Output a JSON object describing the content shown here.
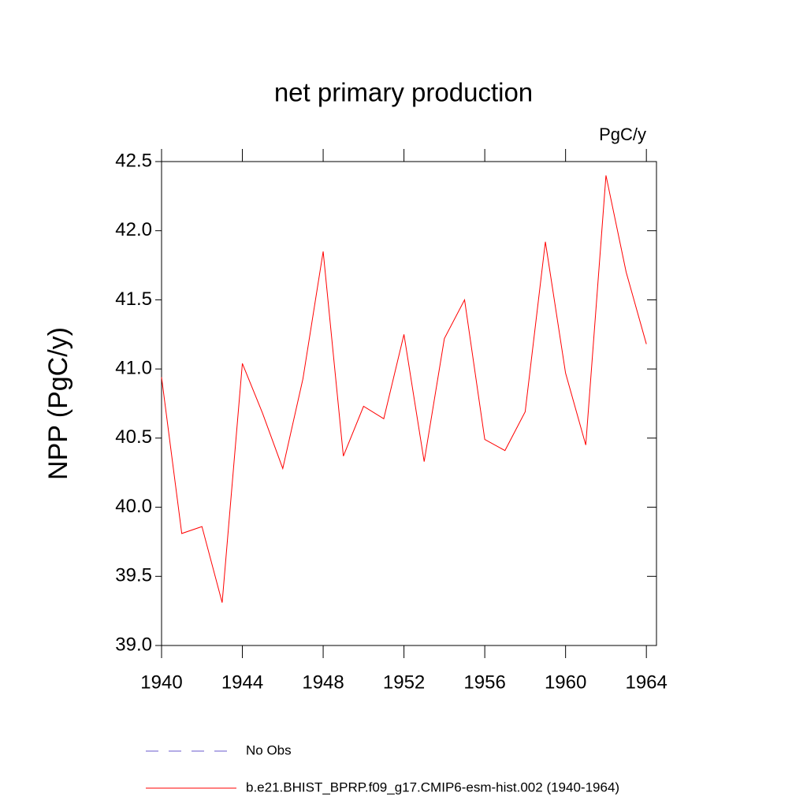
{
  "chart_data": {
    "type": "line",
    "title": "net primary production",
    "subtitle": "PgC/y",
    "y_label": "NPP  (PgC/y)",
    "x": [
      1940,
      1941,
      1942,
      1943,
      1944,
      1945,
      1946,
      1947,
      1948,
      1949,
      1950,
      1951,
      1952,
      1953,
      1954,
      1955,
      1956,
      1957,
      1958,
      1959,
      1960,
      1961,
      1962,
      1963,
      1964
    ],
    "series": [
      {
        "name": "No Obs",
        "color": "#6a5acd",
        "dash": "dashed",
        "values": [
          null,
          null,
          null,
          null,
          null,
          null,
          null,
          null,
          null,
          null,
          null,
          null,
          null,
          null,
          null,
          null,
          null,
          null,
          null,
          null,
          null,
          null,
          null,
          null,
          null
        ]
      },
      {
        "name": "b.e21.BHIST_BPRP.f09_g17.CMIP6-esm-hist.002 (1940-1964)",
        "color": "#ff0000",
        "dash": "solid",
        "values": [
          40.94,
          39.81,
          39.86,
          39.31,
          41.04,
          40.68,
          40.28,
          40.93,
          41.85,
          40.37,
          40.73,
          40.64,
          41.25,
          40.33,
          41.22,
          41.5,
          40.49,
          40.41,
          40.69,
          41.92,
          40.97,
          40.45,
          42.4,
          41.7,
          41.18
        ]
      }
    ],
    "xlim": [
      1940,
      1964.5
    ],
    "xticks": [
      1940,
      1944,
      1948,
      1952,
      1956,
      1960,
      1964
    ],
    "ylim": [
      39.0,
      42.5
    ],
    "yticks": [
      {
        "value": 39,
        "label": "39.0"
      },
      39.5,
      {
        "value": 40,
        "label": "40.0"
      },
      40.5,
      {
        "value": 41,
        "label": "41.0"
      },
      41.5,
      {
        "value": 42,
        "label": "42.0"
      },
      42.5
    ],
    "grid": false
  }
}
